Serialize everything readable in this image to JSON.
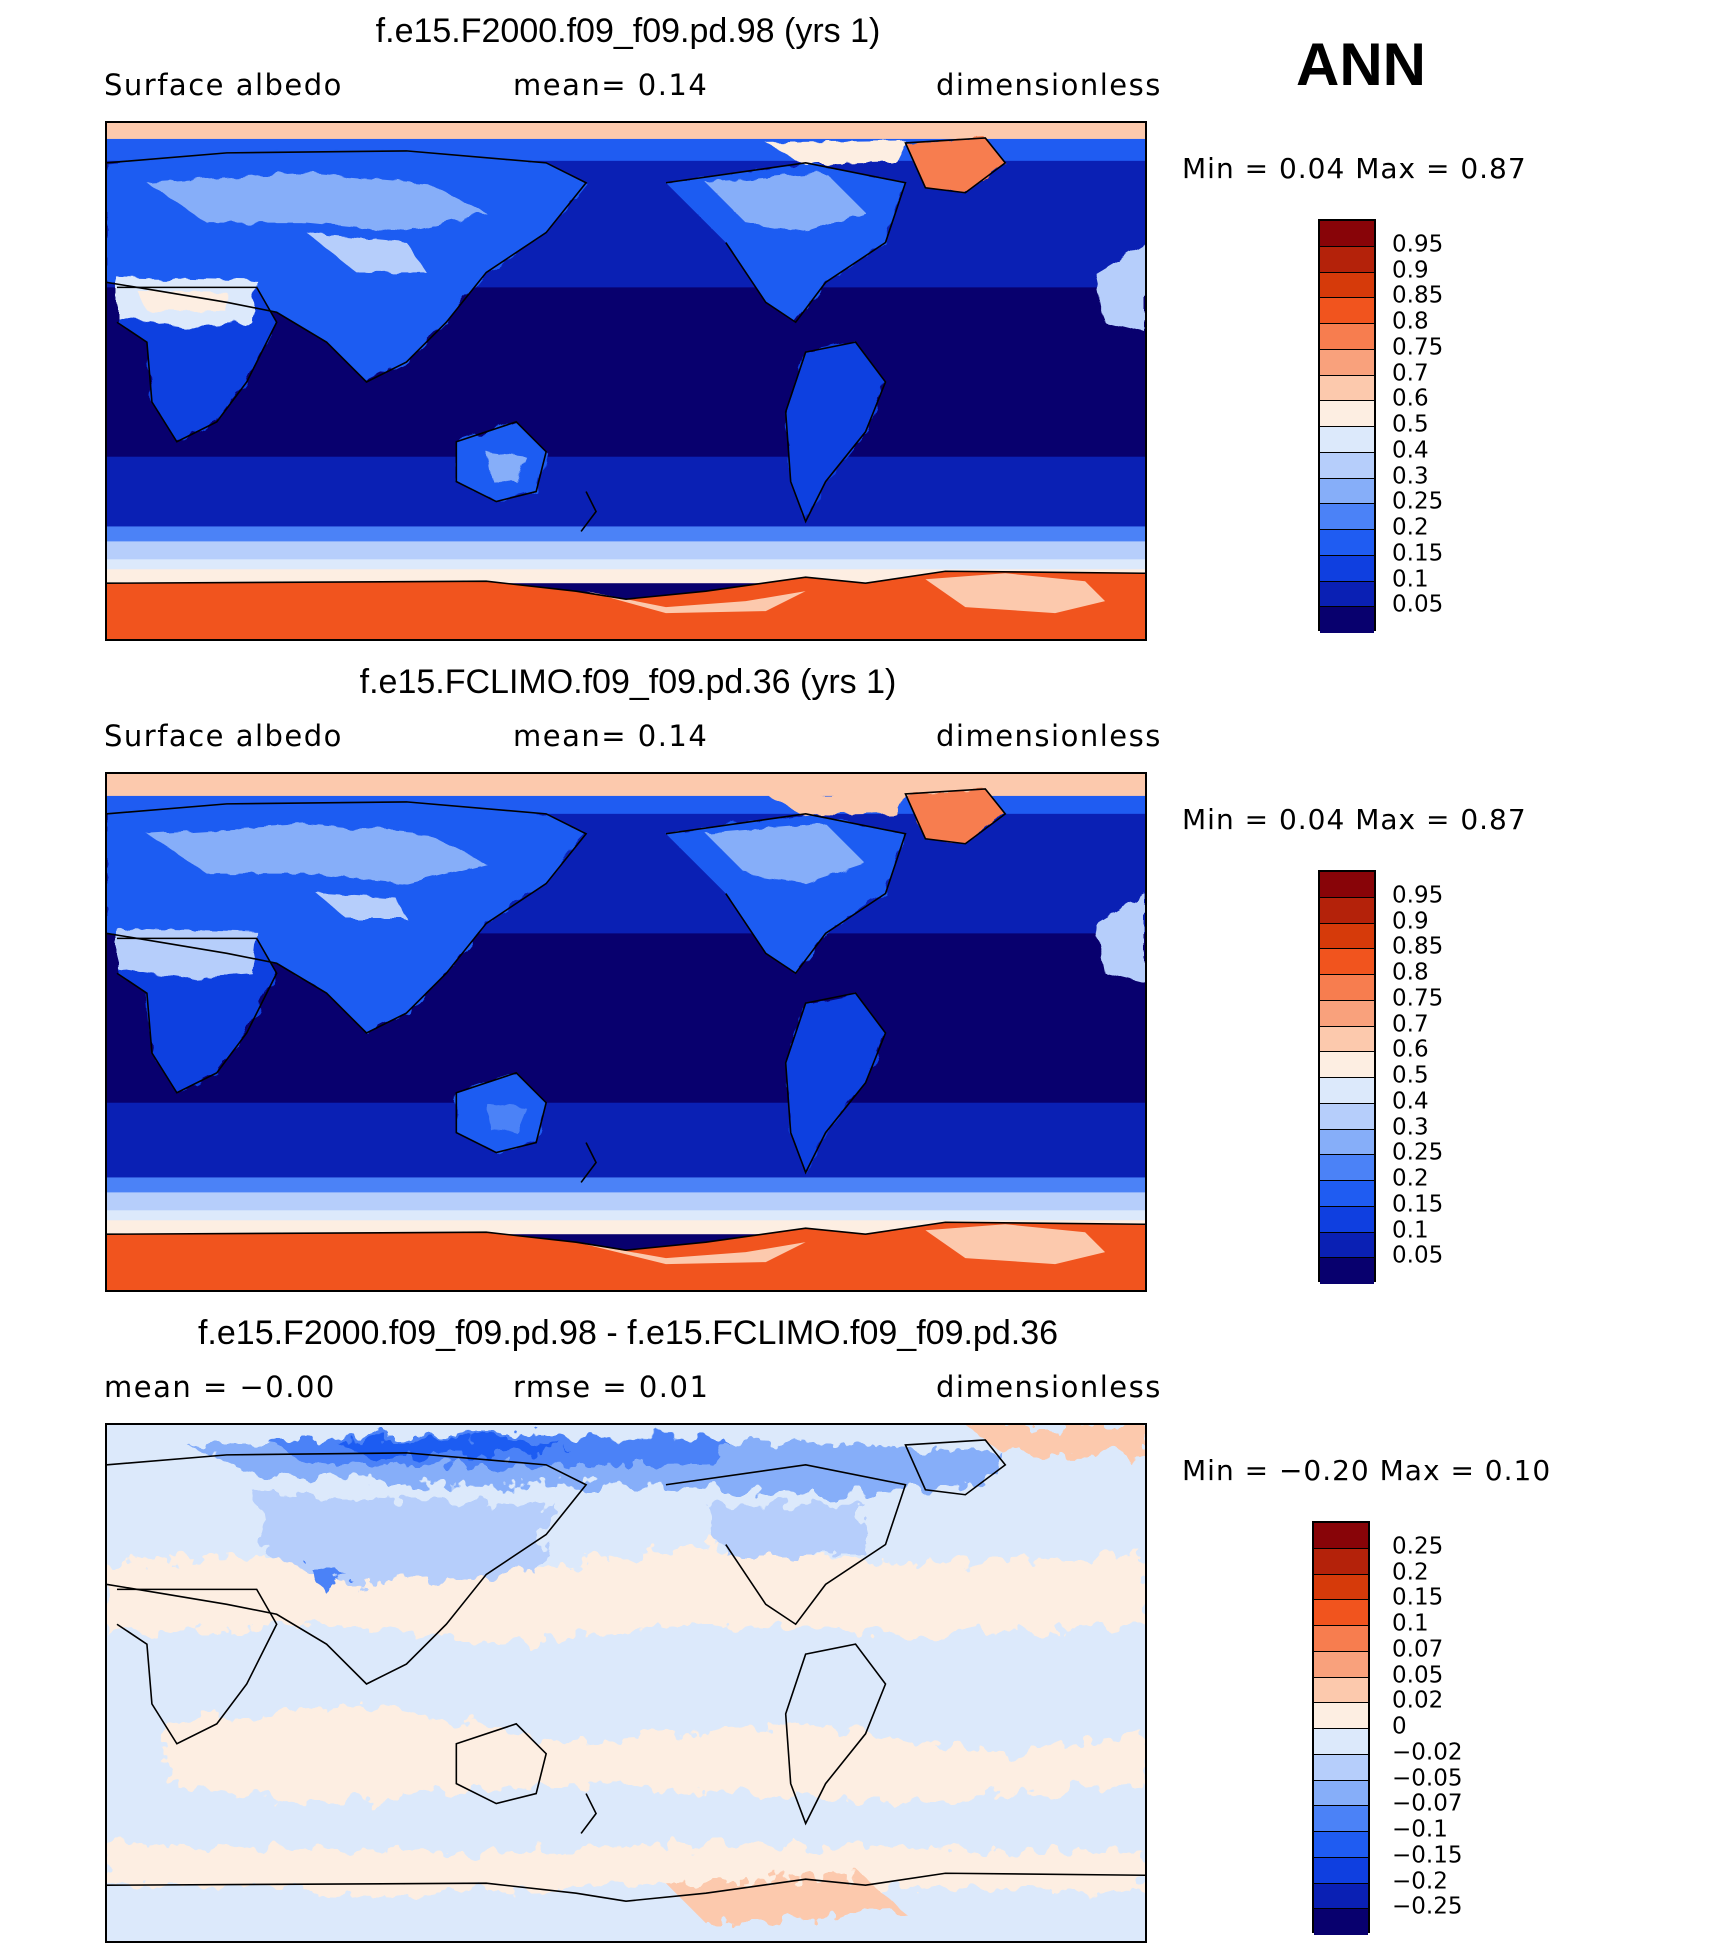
{
  "season": "ANN",
  "palette_abs": [
    "#08006e",
    "#0a20b4",
    "#0f3fe0",
    "#1f5cf2",
    "#4b82f7",
    "#86aef9",
    "#b6cefb",
    "#dce9fb",
    "#fdeee2",
    "#fcc9ad",
    "#f9a17c",
    "#f77d4f",
    "#f1541e",
    "#d63a0a",
    "#b4220a",
    "#880408"
  ],
  "palette_diff": [
    "#08006e",
    "#0a20b4",
    "#0f3fe0",
    "#1f5cf2",
    "#4b82f7",
    "#86aef9",
    "#b6cefb",
    "#dce9fb",
    "#fdeee2",
    "#fcc9ad",
    "#f9a17c",
    "#f77d4f",
    "#f1541e",
    "#d63a0a",
    "#b4220a",
    "#880408"
  ],
  "panels": [
    {
      "title": "f.e15.F2000.f09_f09.pd.98 (yrs 1)",
      "left_label": "Surface albedo",
      "center_label": "mean=    0.14",
      "right_label": "dimensionless",
      "minmax": "Min =    0.04 Max =    0.87",
      "colorbar_labels": [
        "0.95",
        "0.9",
        "0.85",
        "0.8",
        "0.75",
        "0.7",
        "0.6",
        "0.5",
        "0.4",
        "0.3",
        "0.25",
        "0.2",
        "0.15",
        "0.1",
        "0.05"
      ],
      "kind": "abs"
    },
    {
      "title": "f.e15.FCLIMO.f09_f09.pd.36 (yrs 1)",
      "left_label": "Surface albedo",
      "center_label": "mean=    0.14",
      "right_label": "dimensionless",
      "minmax": "Min =    0.04 Max =    0.87",
      "colorbar_labels": [
        "0.95",
        "0.9",
        "0.85",
        "0.8",
        "0.75",
        "0.7",
        "0.6",
        "0.5",
        "0.4",
        "0.3",
        "0.25",
        "0.2",
        "0.15",
        "0.1",
        "0.05"
      ],
      "kind": "abs"
    },
    {
      "title": "f.e15.F2000.f09_f09.pd.98 - f.e15.FCLIMO.f09_f09.pd.36",
      "left_label": "mean =   −0.00",
      "center_label": "rmse =    0.01",
      "right_label": "dimensionless",
      "minmax": "Min =   −0.20 Max =    0.10",
      "colorbar_labels": [
        "0.25",
        "0.2",
        "0.15",
        "0.1",
        "0.07",
        "0.05",
        "0.02",
        "0",
        "−0.02",
        "−0.05",
        "−0.07",
        "−0.1",
        "−0.15",
        "−0.2",
        "−0.25"
      ],
      "kind": "diff"
    }
  ]
}
